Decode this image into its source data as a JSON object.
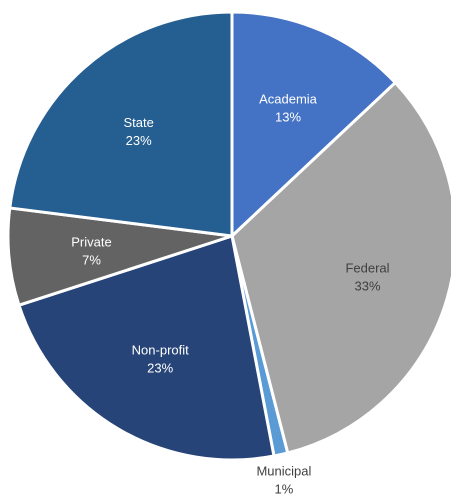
{
  "chart_data": {
    "type": "pie",
    "title": "",
    "series": [
      {
        "name": "",
        "values": [
          13,
          33,
          1,
          23,
          7,
          23
        ]
      }
    ],
    "categories": [
      "Academia",
      "Federal",
      "Municipal",
      "Non-profit",
      "Private",
      "State"
    ],
    "slices": [
      {
        "label": "Academia",
        "value": 13,
        "pct_label": "13%",
        "color": "#4472c4",
        "text_color": "#ffffff",
        "label_outside": false
      },
      {
        "label": "Federal",
        "value": 33,
        "pct_label": "33%",
        "color": "#a5a5a5",
        "text_color": "#404040",
        "label_outside": false
      },
      {
        "label": "Municipal",
        "value": 1,
        "pct_label": "1%",
        "color": "#5b9bd5",
        "text_color": "#404040",
        "label_outside": true
      },
      {
        "label": "Non-profit",
        "value": 23,
        "pct_label": "23%",
        "color": "#264478",
        "text_color": "#ffffff",
        "label_outside": false
      },
      {
        "label": "Private",
        "value": 7,
        "pct_label": "7%",
        "color": "#636363",
        "text_color": "#ffffff",
        "label_outside": false
      },
      {
        "label": "State",
        "value": 23,
        "pct_label": "23%",
        "color": "#255e91",
        "text_color": "#ffffff",
        "label_outside": false
      }
    ],
    "start_angle_deg": 0,
    "direction": "clockwise",
    "legend": "none"
  }
}
